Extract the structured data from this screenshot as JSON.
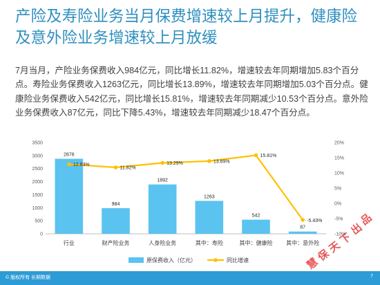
{
  "slide": {
    "title": "产险及寿险业务当月保费增速较上月提升，健康险及意外险业务增速较上月放缓",
    "body": "7月当月，产险业务保费收入984亿元，同比增长11.82%，增速较去年同期增加5.83个百分点。寿险业务保费收入1263亿元，同比增长13.89%，增速较去年同期增加5.03个百分点。健康险业务保费收入542亿元，同比增长15.81%，增速较去年同期减少10.53个百分点。意外险业务保费收入87亿元，同比下降5.43%，增速较去年同期减少18.47个百分点。"
  },
  "chart_data": {
    "type": "bar",
    "categories": [
      "行业",
      "财产险业务",
      "人身险业务",
      "其中：寿险",
      "其中：健康险",
      "其中：意外险"
    ],
    "series": [
      {
        "name": "原保费收入（亿元）",
        "type": "bar",
        "axis": "left",
        "values": [
          2876,
          984,
          1892,
          1263,
          542,
          87
        ],
        "labels": [
          "2876",
          "984",
          "1892",
          "1263",
          "542",
          "87"
        ],
        "color": "#5bc3ef"
      },
      {
        "name": "同比增速",
        "type": "line",
        "axis": "right",
        "values": [
          12.83,
          11.82,
          13.29,
          13.89,
          15.81,
          -5.43
        ],
        "labels": [
          "12.83%",
          "11.82%",
          "13.29%",
          "13.89%",
          "15.81%",
          "-5.43%"
        ],
        "color": "#ffc000"
      }
    ],
    "y_left": {
      "ticks": [
        "0",
        "500",
        "1000",
        "1500",
        "2000",
        "2500",
        "3000",
        "3500"
      ],
      "min": 0,
      "max": 3500,
      "step": 500
    },
    "y_right": {
      "ticks": [
        "-10%",
        "-5%",
        "0%",
        "5%",
        "10%",
        "15%",
        "20%"
      ],
      "min": -10,
      "max": 20,
      "step": 5
    },
    "legend_position": "bottom",
    "grid": false
  },
  "footer": {
    "left": "© 版权所有 长期数据",
    "right": "7"
  },
  "watermark": {
    "text": "慧保天下出品"
  },
  "colors": {
    "title": "#2e8fbf",
    "bar": "#5bc3ef",
    "line": "#ffc000",
    "footer": "#2d9bd6",
    "watermark": "#e02020"
  }
}
